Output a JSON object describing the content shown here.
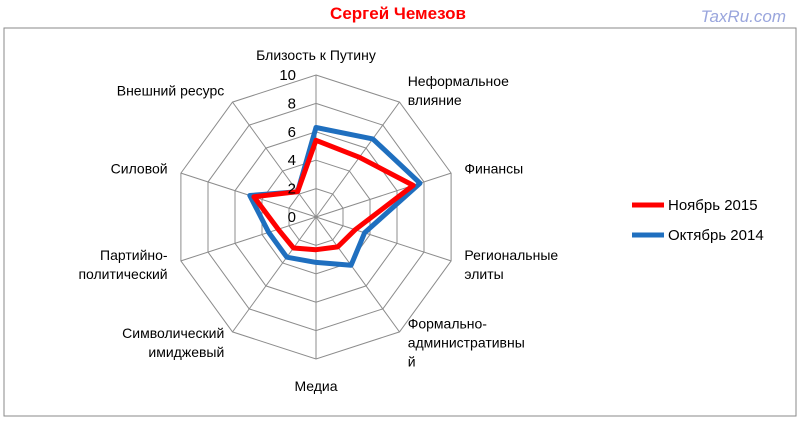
{
  "watermark": "TaxRu.com",
  "chart_data": {
    "type": "radar",
    "title": "Сергей Чемезов",
    "rmin": 0,
    "rmax": 10,
    "ticks": [
      "0",
      "2",
      "4",
      "6",
      "8",
      "10"
    ],
    "tick_values": [
      0,
      2,
      4,
      6,
      8,
      10
    ],
    "grid": true,
    "legend_position": "right",
    "categories": [
      [
        "Близость к Путину"
      ],
      [
        "Неформальное",
        "влияние"
      ],
      [
        "Финансы"
      ],
      [
        "Региональные",
        "элиты"
      ],
      [
        "Формально-",
        "административны",
        "й"
      ],
      [
        "Медиа"
      ],
      [
        "Символический",
        "имиджевый"
      ],
      [
        "Партийно-",
        "политический"
      ],
      [
        "Силовой"
      ],
      [
        "Внешний ресурс"
      ]
    ],
    "series": [
      {
        "name": "Ноябрь 2015",
        "color": "#ff0000",
        "values": [
          5.4,
          5.2,
          7.2,
          2.9,
          2.6,
          2.3,
          2.7,
          2.8,
          4.6,
          2.2
        ]
      },
      {
        "name": "Октябрь 2014",
        "color": "#1f6fbf",
        "values": [
          6.3,
          6.8,
          7.7,
          3.6,
          4.2,
          3.2,
          3.5,
          3.5,
          4.9,
          2.2
        ]
      }
    ]
  }
}
